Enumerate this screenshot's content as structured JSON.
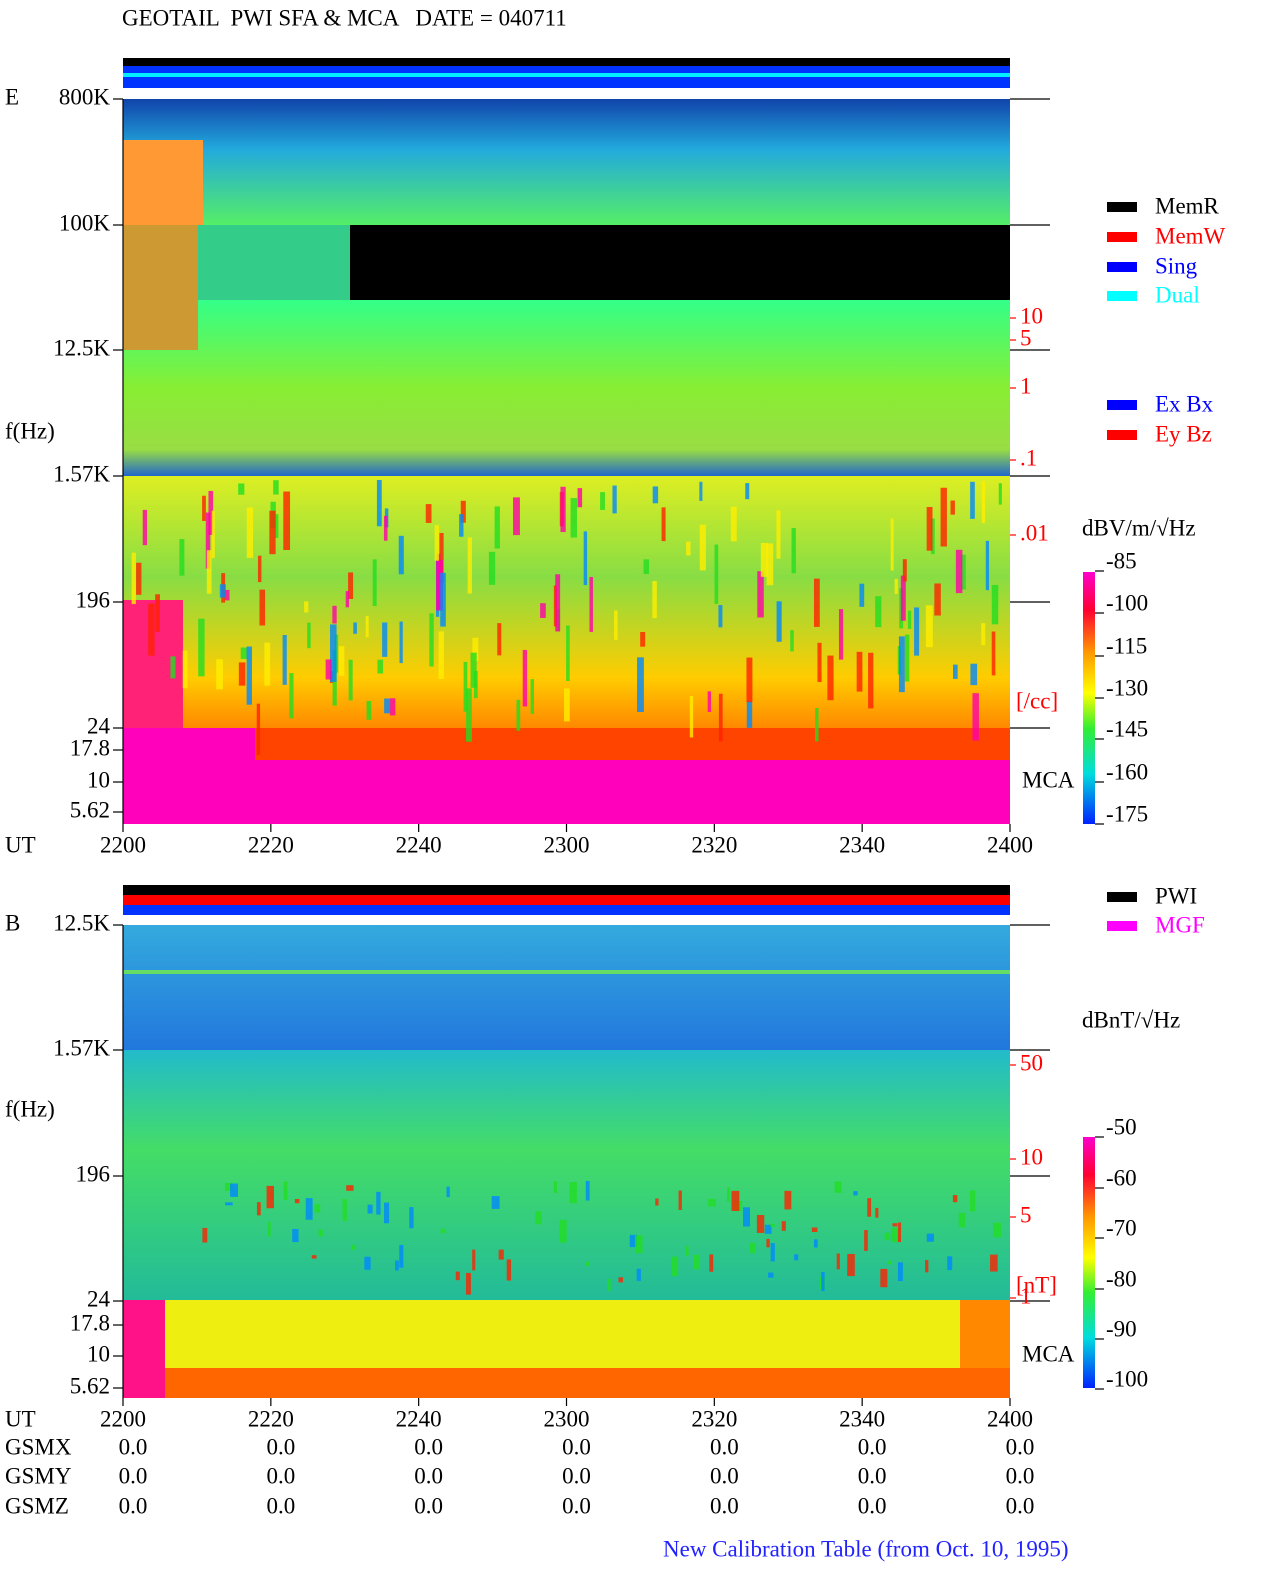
{
  "header": {
    "title": "GEOTAIL  PWI SFA & MCA   DATE = 040711"
  },
  "panels": [
    {
      "label": "E",
      "freq_ticks": [
        "800K",
        "100K",
        "12.5K",
        "1.57K",
        "196",
        "24",
        "17.8",
        "10",
        "5.62"
      ],
      "freq_label": "f(Hz)",
      "ut_label": "UT",
      "time_ticks": [
        "2200",
        "2220",
        "2240",
        "2300",
        "2320",
        "2340",
        "2400"
      ],
      "density_ticks": [
        "10",
        "5",
        "1",
        ".1",
        ".01"
      ],
      "density_unit": "[/cc]",
      "mca_label": "MCA",
      "colorbar_label": "dBV/m/√Hz",
      "colorbar_ticks": [
        "-85",
        "-100",
        "-115",
        "-130",
        "-145",
        "-160",
        "-175"
      ]
    },
    {
      "label": "B",
      "freq_ticks": [
        "12.5K",
        "1.57K",
        "196",
        "24",
        "17.8",
        "10",
        "5.62"
      ],
      "freq_label": "f(Hz)",
      "ut_label": "UT",
      "time_ticks": [
        "2200",
        "2220",
        "2240",
        "2300",
        "2320",
        "2340",
        "2400"
      ],
      "density_ticks": [
        "50",
        "10",
        "5",
        "1"
      ],
      "density_unit": "[nT]",
      "mca_label": "MCA",
      "colorbar_label": "dBnT/√Hz",
      "colorbar_ticks": [
        "-50",
        "-60",
        "-70",
        "-80",
        "-90",
        "-100"
      ]
    }
  ],
  "legend_mode": [
    "MemR",
    "MemW",
    "Sing",
    "Dual"
  ],
  "legend_component": [
    "Ex Bx",
    "Ey Bz"
  ],
  "legend_source": [
    "PWI",
    "MGF"
  ],
  "position_table": {
    "rows": [
      {
        "label": "GSMX",
        "values": [
          "0.0",
          "0.0",
          "0.0",
          "0.0",
          "0.0",
          "0.0",
          "0.0"
        ]
      },
      {
        "label": "GSMY",
        "values": [
          "0.0",
          "0.0",
          "0.0",
          "0.0",
          "0.0",
          "0.0",
          "0.0"
        ]
      },
      {
        "label": "GSMZ",
        "values": [
          "0.0",
          "0.0",
          "0.0",
          "0.0",
          "0.0",
          "0.0",
          "0.0"
        ]
      }
    ]
  },
  "footer": "New Calibration Table (from Oct. 10, 1995)"
}
